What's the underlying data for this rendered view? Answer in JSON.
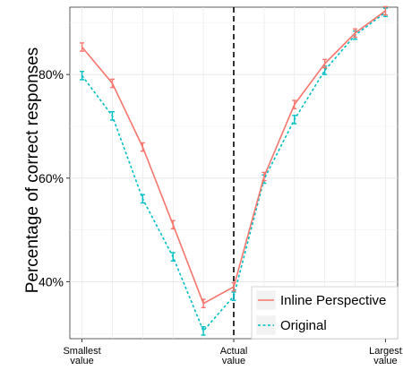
{
  "chart_data": {
    "type": "line",
    "ylabel": "Percentage of correct responses",
    "xlabel": "",
    "x_positions": [
      1,
      2,
      3,
      4,
      5,
      6,
      7,
      8,
      9,
      10,
      11
    ],
    "x_ticks": [
      {
        "pos": 1,
        "lines": [
          "Smallest",
          "value"
        ]
      },
      {
        "pos": 6,
        "lines": [
          "Actual",
          "value"
        ]
      },
      {
        "pos": 11,
        "lines": [
          "Largest",
          "value"
        ]
      }
    ],
    "y_ticks": [
      {
        "value": 40,
        "label": "40%"
      },
      {
        "value": 60,
        "label": "60%"
      },
      {
        "value": 80,
        "label": "80%"
      }
    ],
    "xlim": [
      0.6,
      11.4
    ],
    "ylim": [
      29,
      93
    ],
    "grid": true,
    "vline_at": 6,
    "legend_position": "bottom-right",
    "series": [
      {
        "name": "Inline Perspective",
        "color": "#f8766d",
        "dash": "solid",
        "values": [
          85.3,
          78.3,
          66.0,
          51.0,
          35.8,
          39.0,
          60.3,
          74.2,
          82.1,
          88.0,
          92.3
        ],
        "err": [
          0.8,
          0.8,
          0.8,
          0.8,
          0.8,
          0.8,
          0.8,
          0.8,
          0.8,
          0.8,
          0.8
        ]
      },
      {
        "name": "Original",
        "color": "#00bfc4",
        "dash": "dotted",
        "values": [
          79.8,
          72.0,
          56.0,
          44.8,
          30.5,
          37.2,
          59.8,
          71.3,
          80.8,
          87.6,
          92.0
        ],
        "err": [
          0.8,
          0.8,
          0.8,
          0.8,
          0.8,
          0.8,
          0.8,
          0.8,
          0.8,
          0.8,
          0.8
        ]
      }
    ]
  }
}
